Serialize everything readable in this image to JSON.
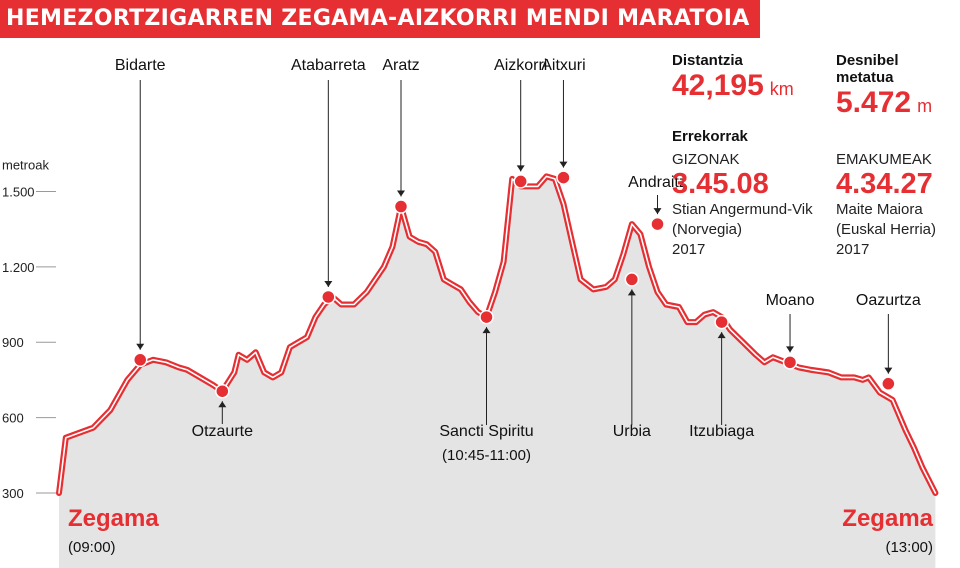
{
  "title": "HEMEZORTZIGARREN ZEGAMA-AIZKORRI MENDI MARATOIA",
  "stats": {
    "distance_label": "Distantzia",
    "distance_value": "42,195",
    "distance_unit": "km",
    "climb_label": "Desnibel metatua",
    "climb_value": "5.472",
    "climb_unit": "m"
  },
  "records": {
    "heading": "Errekorrak",
    "men": {
      "label": "GIZONAK",
      "time": "3.45.08",
      "name": "Stian Angermund-Vik",
      "country": "(Norvegia)",
      "year": "2017"
    },
    "women": {
      "label": "EMAKUMEAK",
      "time": "4.34.27",
      "name": "Maite Maiora",
      "country": "(Euskal Herria)",
      "year": "2017"
    }
  },
  "colors": {
    "accent": "#e52f33",
    "fill": "#e4e4e4",
    "text": "#111111"
  },
  "chart_data": {
    "type": "area",
    "ylabel": "metroak",
    "ylim": [
      300,
      1550
    ],
    "yticks": [
      300,
      600,
      900,
      1200,
      1500
    ],
    "ytick_labels": [
      "300",
      "600",
      "900",
      "1.200",
      "1.500"
    ],
    "xlim": [
      0,
      100
    ],
    "profile": [
      [
        0,
        300
      ],
      [
        0.8,
        520
      ],
      [
        4,
        560
      ],
      [
        6,
        630
      ],
      [
        8,
        750
      ],
      [
        9.5,
        810
      ],
      [
        11,
        830
      ],
      [
        12.5,
        820
      ],
      [
        14,
        800
      ],
      [
        15,
        790
      ],
      [
        16.5,
        760
      ],
      [
        18,
        730
      ],
      [
        19.1,
        705
      ],
      [
        20.5,
        780
      ],
      [
        21,
        850
      ],
      [
        22,
        830
      ],
      [
        23,
        860
      ],
      [
        24,
        780
      ],
      [
        25,
        760
      ],
      [
        26,
        780
      ],
      [
        27,
        880
      ],
      [
        28,
        900
      ],
      [
        29,
        920
      ],
      [
        30,
        1000
      ],
      [
        31,
        1050
      ],
      [
        32,
        1080
      ],
      [
        33,
        1050
      ],
      [
        34.5,
        1050
      ],
      [
        36,
        1100
      ],
      [
        38,
        1200
      ],
      [
        39,
        1280
      ],
      [
        40,
        1440
      ],
      [
        41,
        1320
      ],
      [
        42,
        1300
      ],
      [
        43,
        1290
      ],
      [
        44,
        1260
      ],
      [
        45,
        1150
      ],
      [
        46,
        1130
      ],
      [
        47,
        1110
      ],
      [
        48,
        1060
      ],
      [
        49,
        1020
      ],
      [
        50,
        1000
      ],
      [
        51,
        1100
      ],
      [
        52,
        1220
      ],
      [
        53,
        1550
      ],
      [
        54,
        1520
      ],
      [
        55,
        1520
      ],
      [
        56,
        1520
      ],
      [
        57,
        1560
      ],
      [
        58,
        1550
      ],
      [
        59,
        1450
      ],
      [
        60,
        1300
      ],
      [
        61,
        1150
      ],
      [
        62.5,
        1110
      ],
      [
        64,
        1120
      ],
      [
        65,
        1150
      ],
      [
        66,
        1250
      ],
      [
        67,
        1370
      ],
      [
        68,
        1330
      ],
      [
        69,
        1200
      ],
      [
        70,
        1100
      ],
      [
        71,
        1050
      ],
      [
        72.5,
        1040
      ],
      [
        73.5,
        980
      ],
      [
        74.5,
        980
      ],
      [
        75.5,
        1010
      ],
      [
        76.5,
        1020
      ],
      [
        77.5,
        1000
      ],
      [
        78.5,
        950
      ],
      [
        80,
        900
      ],
      [
        81.5,
        850
      ],
      [
        82.5,
        820
      ],
      [
        83.5,
        840
      ],
      [
        85,
        820
      ],
      [
        86.5,
        800
      ],
      [
        88,
        790
      ],
      [
        90,
        780
      ],
      [
        91.5,
        760
      ],
      [
        93,
        760
      ],
      [
        94,
        750
      ],
      [
        94.7,
        760
      ],
      [
        96,
        700
      ],
      [
        97.5,
        670
      ],
      [
        99,
        550
      ],
      [
        100,
        480
      ],
      [
        101,
        400
      ],
      [
        102.5,
        300
      ]
    ],
    "points": [
      {
        "name": "Bidarte",
        "x": 9.5,
        "y": 830,
        "label_pos": "above"
      },
      {
        "name": "Otzaurte",
        "x": 19.1,
        "y": 705,
        "label_pos": "below"
      },
      {
        "name": "Atabarreta",
        "x": 31.5,
        "y": 1080,
        "label_pos": "above"
      },
      {
        "name": "Aratz",
        "x": 40,
        "y": 1440,
        "label_pos": "above"
      },
      {
        "name": "Sancti Spiritu",
        "sub": "(10:45-11:00)",
        "x": 50,
        "y": 1000,
        "label_pos": "below"
      },
      {
        "name": "Aizkorri",
        "x": 54,
        "y": 1540,
        "label_pos": "above"
      },
      {
        "name": "Aitxuri",
        "x": 59,
        "y": 1555,
        "label_pos": "above"
      },
      {
        "name": "Urbia",
        "x": 67,
        "y": 1150,
        "label_pos": "below"
      },
      {
        "name": "Andraitz",
        "x": 70,
        "y": 1370,
        "label_pos": "above"
      },
      {
        "name": "Itzubiaga",
        "x": 77.5,
        "y": 980,
        "label_pos": "below"
      },
      {
        "name": "Moano",
        "x": 85.5,
        "y": 820,
        "label_pos": "above"
      },
      {
        "name": "Oazurtza",
        "x": 97,
        "y": 735,
        "label_pos": "above"
      }
    ],
    "start": {
      "name": "Zegama",
      "time": "(09:00)"
    },
    "finish": {
      "name": "Zegama",
      "time": "(13:00)"
    }
  }
}
